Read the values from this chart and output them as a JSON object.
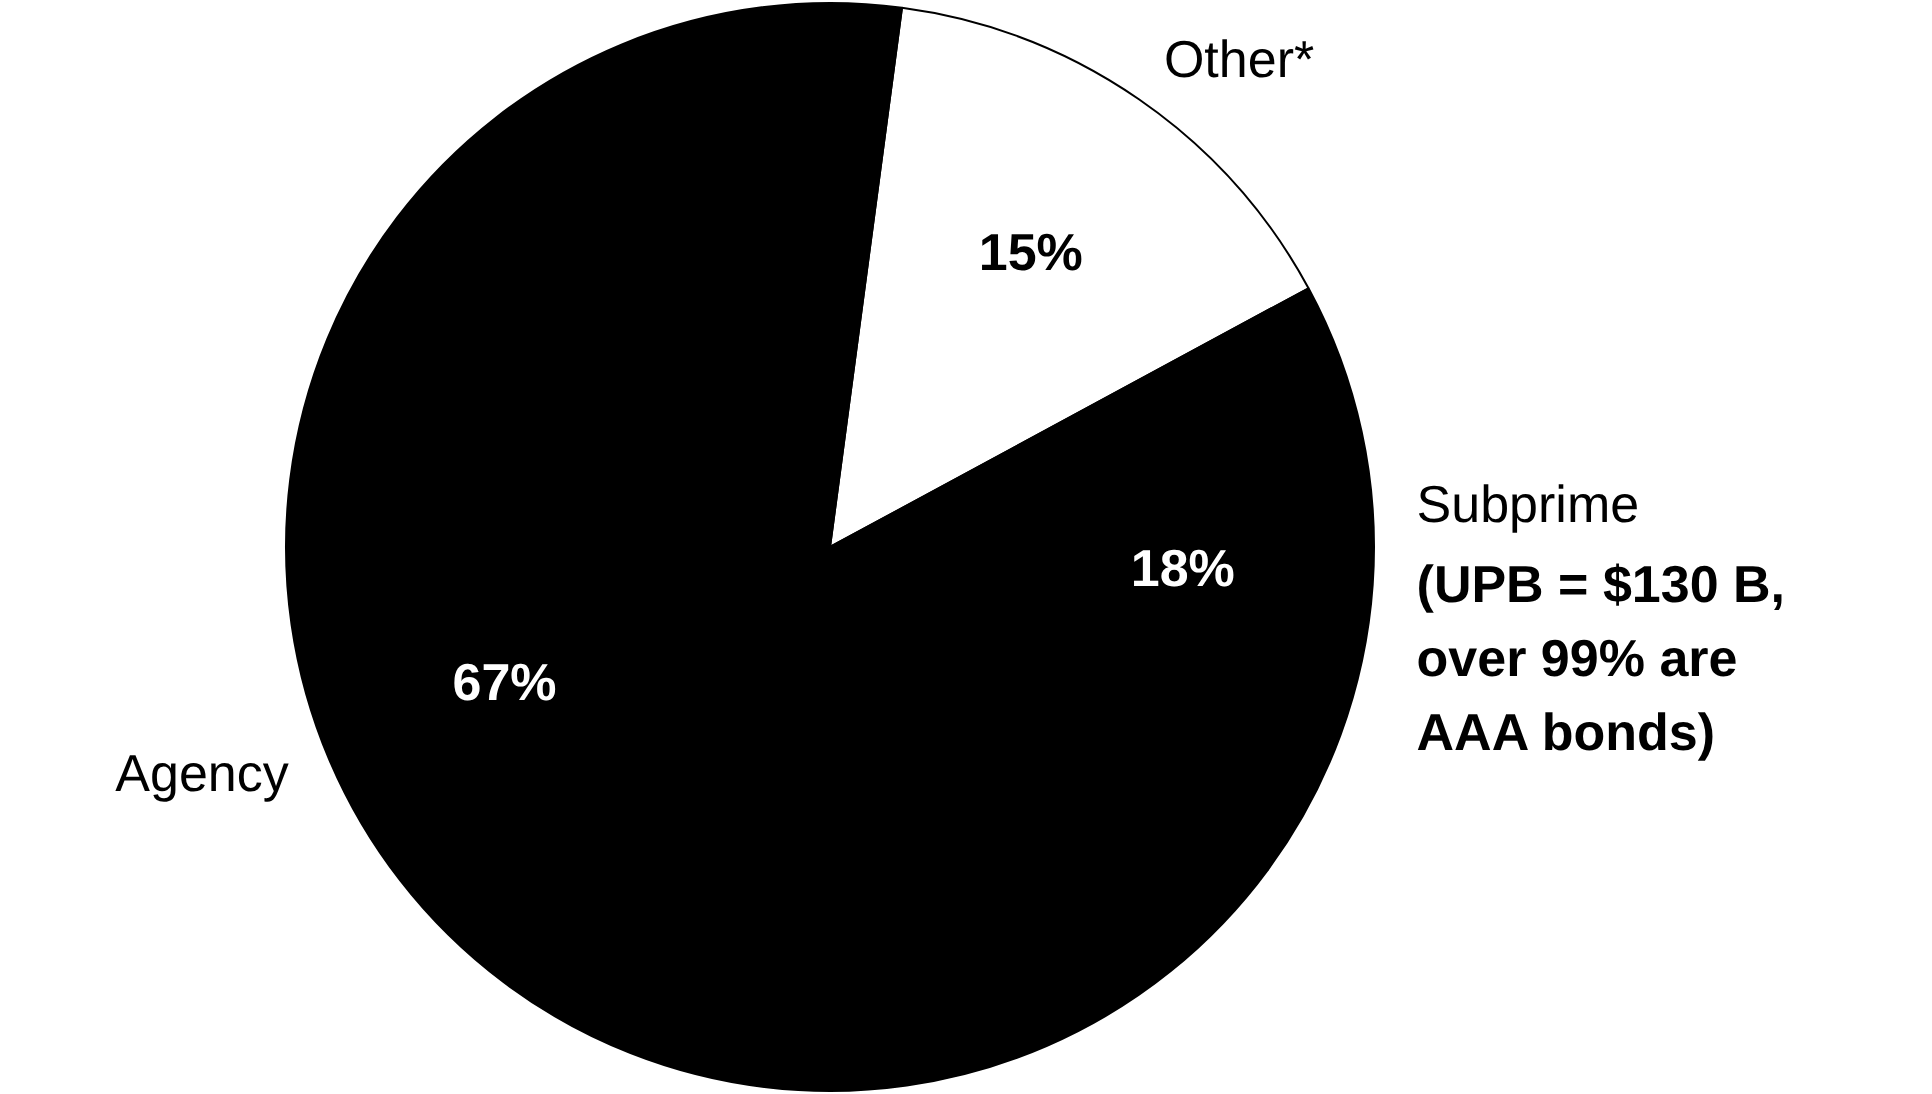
{
  "chart_data": {
    "type": "pie",
    "categories": [
      "Other*",
      "Subprime",
      "Agency"
    ],
    "values": [
      15,
      18,
      67
    ],
    "colors": [
      "#ffffff",
      "#000000",
      "#000000"
    ],
    "value_labels": [
      "15%",
      "18%",
      "67%"
    ],
    "legend": false,
    "annotations": [
      "(UPB = $130 B,\nover 99% are\nAAA bonds)"
    ]
  }
}
